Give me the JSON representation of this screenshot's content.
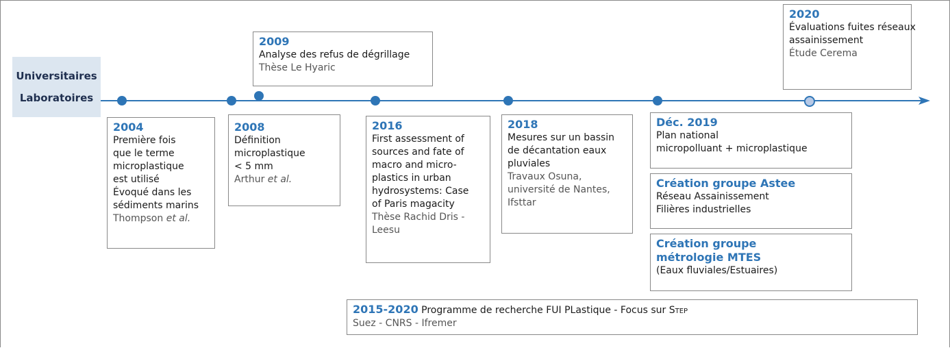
{
  "label": [
    "Universitaires",
    "Laboratoires"
  ],
  "events": [
    {
      "title": "2004",
      "lines": [
        "Première fois",
        "que le terme",
        "microplastique",
        "est utilisé",
        "Évoqué dans les",
        "sédiments marins"
      ],
      "source": [
        "Thompson"
      ],
      "source_emphasis": "et al."
    },
    {
      "title": "2008",
      "lines": [
        "Définition",
        "microplastique",
        "< 5 mm"
      ],
      "source": [
        "Arthur"
      ],
      "source_emphasis": "et al."
    },
    {
      "title": "2009",
      "lines": [
        "Analyse des refus de dégrillage"
      ],
      "source": [
        "Thèse Le Hyaric"
      ]
    },
    {
      "title": "2016",
      "lines": [
        "First assessment of",
        "sources and fate of",
        "macro and micro-",
        "plastics in urban",
        "hydrosystems: Case",
        "of Paris magacity"
      ],
      "source": [
        "Thèse Rachid Dris -",
        "Leesu"
      ]
    },
    {
      "title": "2018",
      "lines": [
        "Mesures sur un bassin",
        "de décantation eaux",
        "pluviales"
      ],
      "source": [
        "Travaux Osuna,",
        "université de Nantes,",
        "Ifsttar"
      ]
    },
    {
      "title": "Déc. 2019",
      "lines": [
        "Plan national",
        "micropolluant + microplastique"
      ]
    },
    {
      "title": "Création groupe Astee",
      "lines": [
        "Réseau Assainissement",
        "Filières industrielles"
      ]
    },
    {
      "title": "Création groupe",
      "title2": "métrologie MTES",
      "lines": [
        "(Eaux fluviales/Estuaires)"
      ]
    },
    {
      "title": "2020",
      "lines": [
        "Évaluations fuites réseaux",
        "assainissement"
      ],
      "source": [
        "Étude Cerema"
      ]
    }
  ],
  "program": {
    "title": "2015-2020",
    "text": "Programme de recherche FUI PLastique - Focus sur",
    "acronym": "Step",
    "source": "Suez - CNRS - Ifremer"
  }
}
